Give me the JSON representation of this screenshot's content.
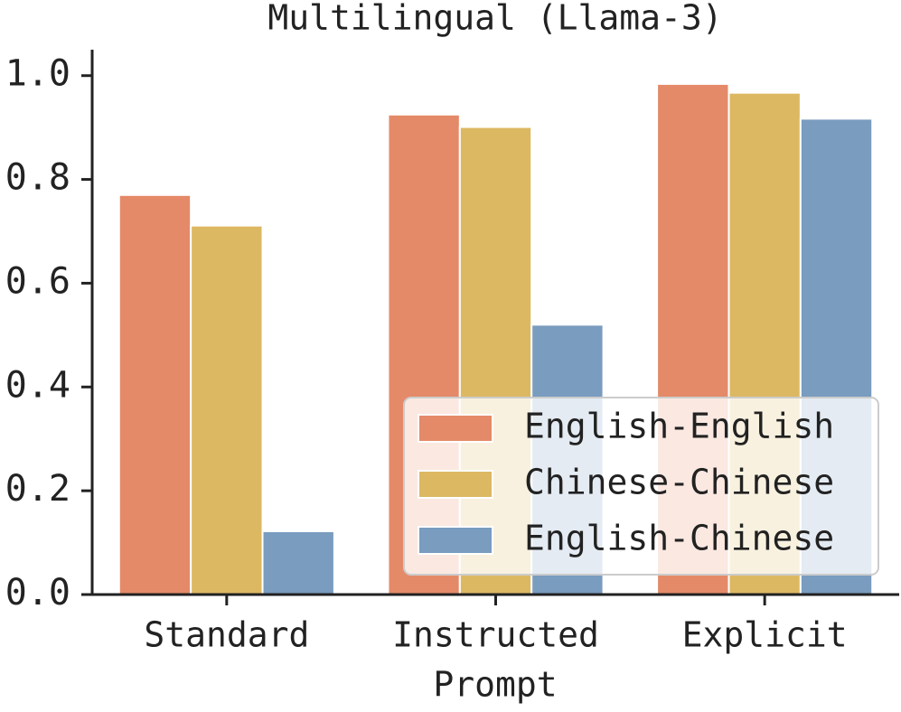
{
  "chart_data": {
    "type": "bar",
    "title": "Multilingual (Llama-3)",
    "x_label": "Prompt",
    "categories": [
      "Standard",
      "Instructed",
      "Explicit"
    ],
    "series": [
      {
        "name": "English-English",
        "color": "#e48a68",
        "values": [
          0.77,
          0.925,
          0.984
        ]
      },
      {
        "name": "Chinese-Chinese",
        "color": "#dcb862",
        "values": [
          0.711,
          0.901,
          0.967
        ]
      },
      {
        "name": "English-Chinese",
        "color": "#799cbf",
        "values": [
          0.122,
          0.52,
          0.917
        ]
      }
    ],
    "ylim": [
      0,
      1.05
    ],
    "yticks": [
      {
        "value": 0,
        "label": "0.0"
      },
      0.2,
      0.4,
      0.6,
      0.8,
      {
        "value": 1,
        "label": "1.0"
      }
    ],
    "legend": "lower right"
  }
}
